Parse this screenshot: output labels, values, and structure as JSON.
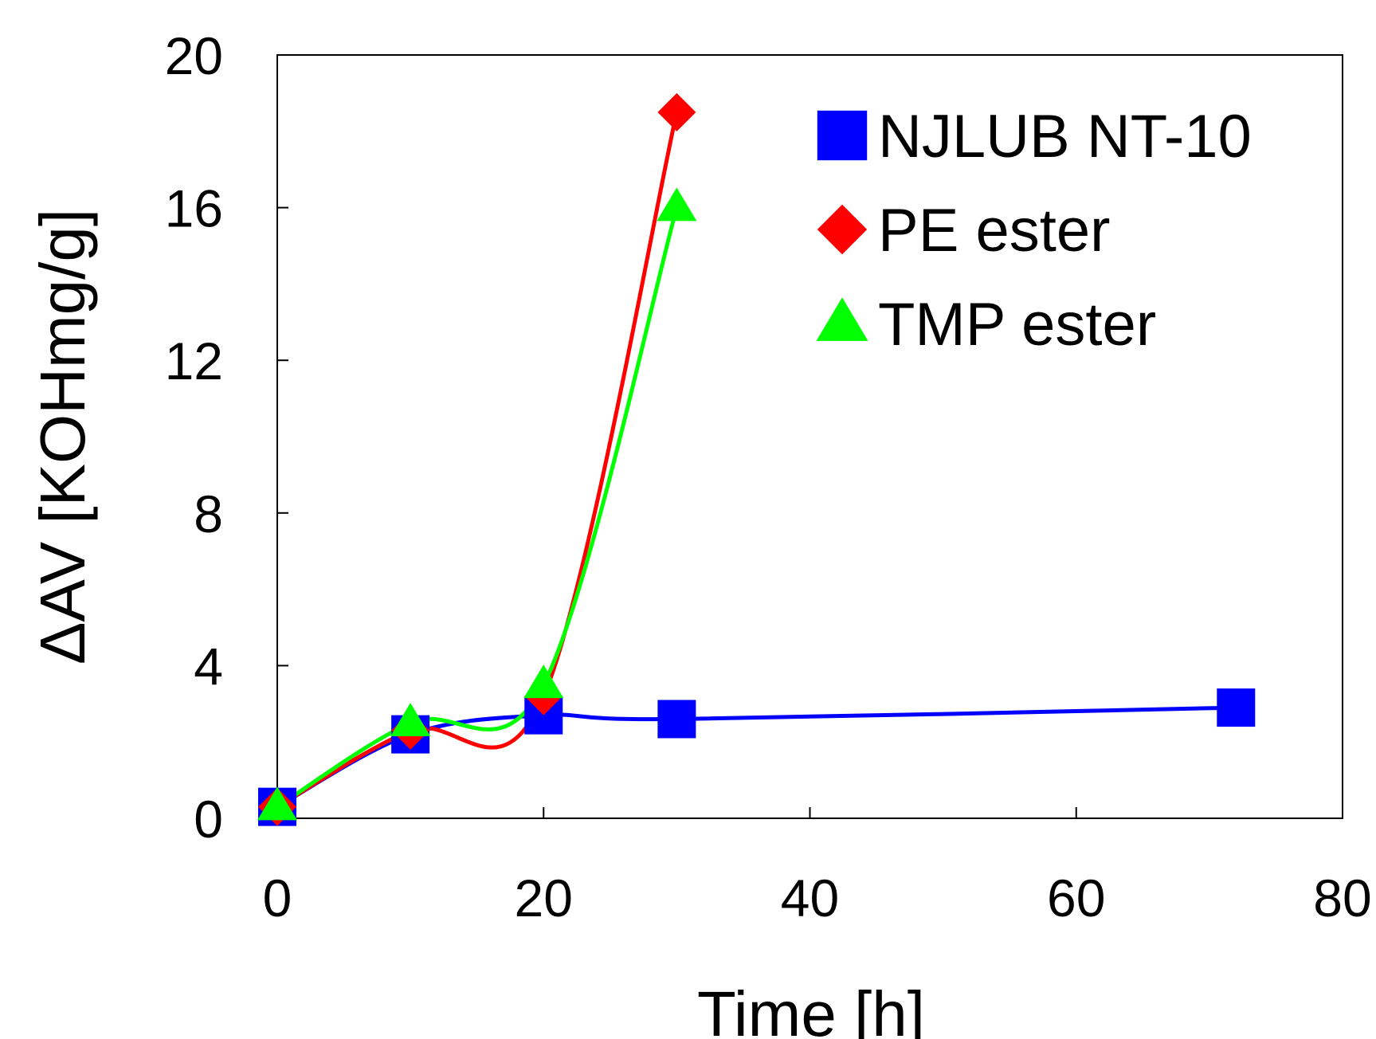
{
  "chart_data": {
    "type": "line",
    "title": "",
    "xlabel": "Time [h]",
    "ylabel": "ΔAV  [KOHmg/g]",
    "xlim": [
      0,
      80
    ],
    "ylim": [
      0,
      20
    ],
    "x_ticks": [
      0,
      20,
      40,
      60,
      80
    ],
    "y_ticks": [
      0,
      4,
      8,
      12,
      16,
      20
    ],
    "grid": false,
    "smooth_lines": true,
    "legend_position": "top-right",
    "series": [
      {
        "name": "NJLUB NT-10",
        "color": "#0000ff",
        "marker": "square",
        "x": [
          0,
          10,
          20,
          30,
          72
        ],
        "y": [
          0.3,
          2.2,
          2.7,
          2.6,
          2.9
        ]
      },
      {
        "name": "PE ester",
        "color": "#ff0000",
        "marker": "diamond",
        "x": [
          0,
          10,
          20,
          30
        ],
        "y": [
          0.3,
          2.3,
          3.2,
          18.5
        ]
      },
      {
        "name": "TMP ester",
        "color": "#00ff00",
        "marker": "triangle",
        "x": [
          0,
          10,
          20,
          30
        ],
        "y": [
          0.3,
          2.5,
          3.5,
          16.0
        ]
      }
    ]
  }
}
